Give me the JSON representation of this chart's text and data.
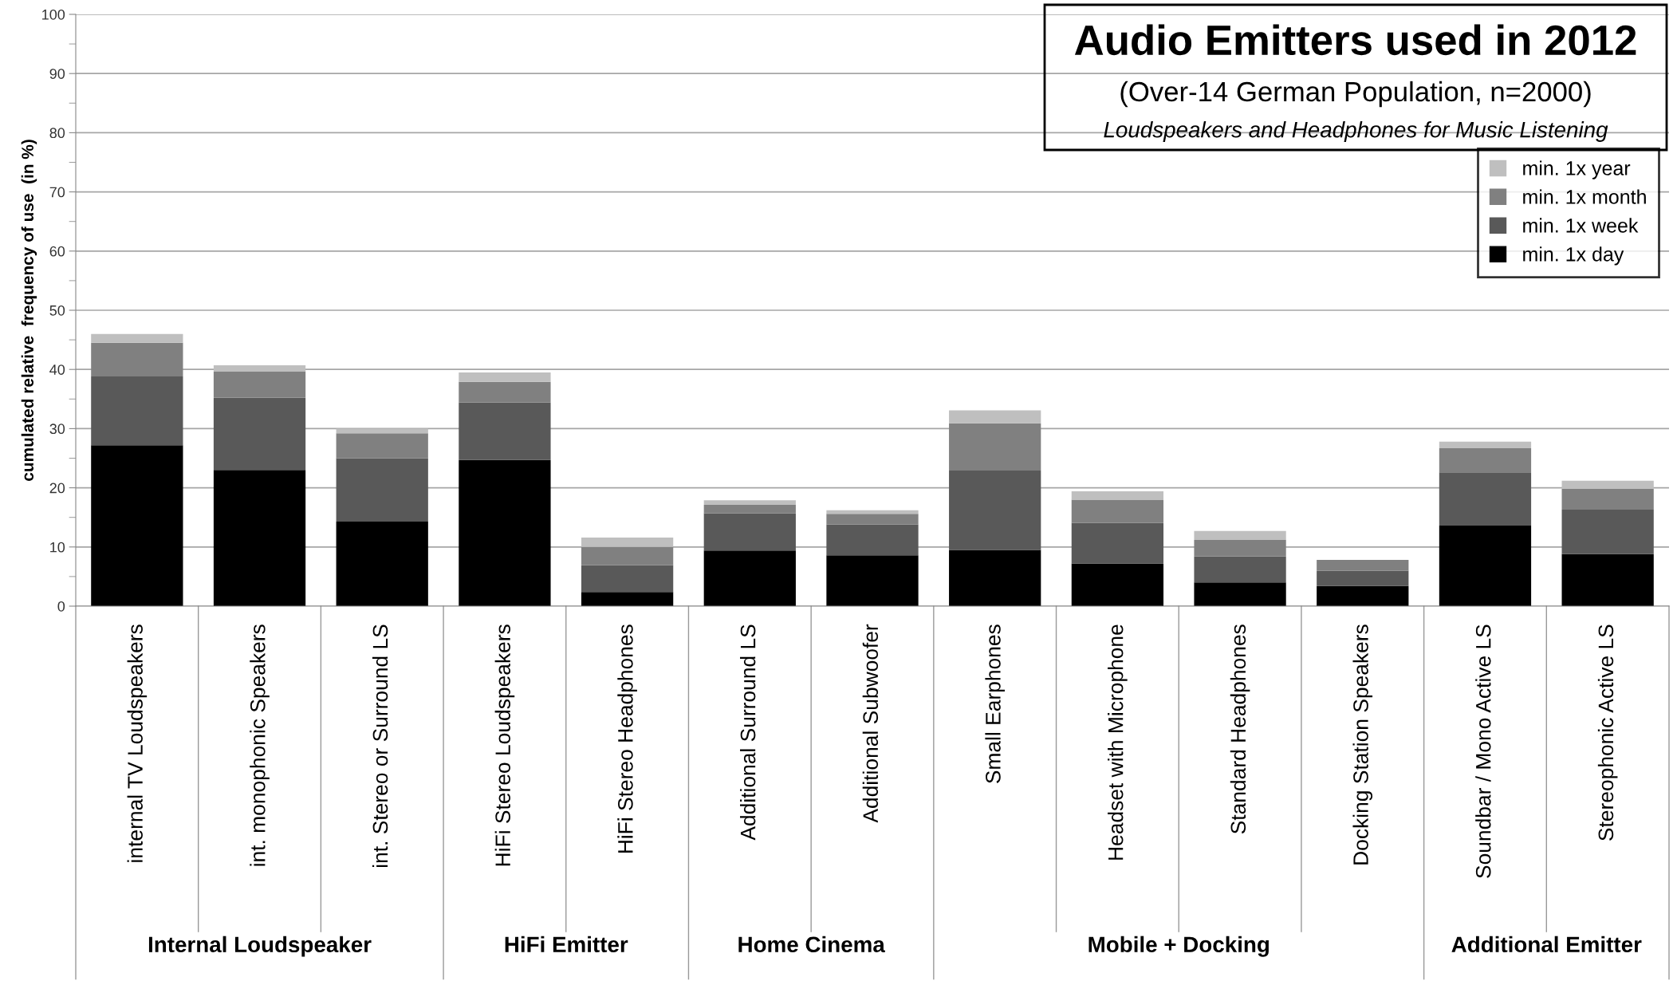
{
  "chart_data": {
    "type": "bar",
    "stacked": true,
    "title": "Audio Emitters used in 2012",
    "subtitle": "(Over-14 German Population, n=2000)",
    "annotations": [
      "Loudspeakers and Headphones for Music Listening",
      "Internal Loudspeaker",
      "HiFi Emitter",
      "Home Cinema",
      "Mobile + Docking",
      "Additional Emitter"
    ],
    "ylabel": "cumulated relative  frequency of use  (in %)",
    "categories": [
      "internal TV Loudspeakers",
      "int. monophonic Speakers",
      "int. Stereo or Surround LS",
      "HiFi Stereo Loudspeakers",
      "HiFi Stereo Headphones",
      "Additional Surround LS",
      "Additional Subwoofer",
      "Small Earphones",
      "Headset with Microphone",
      "Standard Headphones",
      "Docking Station Speakers",
      "Soundbar / Mono Active LS",
      "Stereophonic Active LS"
    ],
    "series": [
      {
        "name": "min. 1x day",
        "color": "#000000",
        "values": [
          27.2,
          23.0,
          14.3,
          24.7,
          2.4,
          9.4,
          8.6,
          9.5,
          7.2,
          4.0,
          3.4,
          13.6,
          8.8
        ]
      },
      {
        "name": "min. 1x week",
        "color": "#595959",
        "values": [
          11.6,
          12.2,
          10.7,
          9.7,
          4.5,
          6.3,
          5.2,
          13.4,
          6.9,
          4.4,
          2.6,
          9.0,
          7.5
        ]
      },
      {
        "name": "min. 1x month",
        "color": "#808080",
        "values": [
          5.7,
          4.5,
          4.2,
          3.5,
          3.1,
          1.4,
          1.8,
          8.0,
          3.9,
          2.8,
          1.8,
          4.1,
          3.5
        ]
      },
      {
        "name": "min. 1x year",
        "color": "#bfbfbf",
        "values": [
          1.5,
          1.0,
          0.8,
          1.6,
          1.6,
          0.8,
          0.6,
          2.2,
          1.4,
          1.5,
          null,
          1.1,
          1.4
        ]
      }
    ],
    "ylim": [
      0,
      100
    ],
    "yticks": [
      0,
      10,
      20,
      30,
      40,
      50,
      60,
      70,
      80,
      90,
      100
    ],
    "grid": "y",
    "legend": "top right"
  }
}
